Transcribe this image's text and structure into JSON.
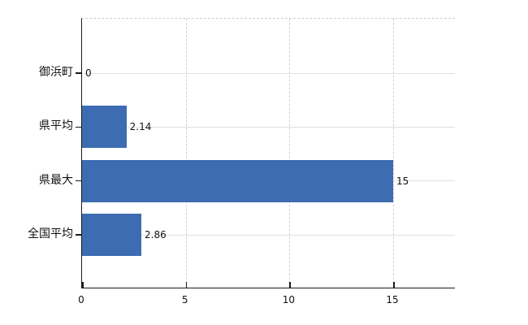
{
  "chart_data": {
    "type": "bar",
    "orientation": "horizontal",
    "title": "",
    "xlabel": "",
    "ylabel": "",
    "categories": [
      "御浜町",
      "県平均",
      "県最大",
      "全国平均"
    ],
    "values": [
      0,
      2.14,
      15,
      2.86
    ],
    "value_labels": [
      "0",
      "2.14",
      "15",
      "2.86"
    ],
    "x_ticks": [
      0,
      5,
      10,
      15
    ],
    "x_tick_labels": [
      "0",
      "5",
      "10",
      "15"
    ],
    "xlim": [
      0,
      18
    ],
    "grid": true,
    "legend": false,
    "bar_color": "#3d6cb2",
    "vertical_gridline_color": "#d2ced2",
    "horizontal_gridline_color": "#dde4dc",
    "axis_color": "#1b1b1b",
    "background_color": "#ffffff"
  }
}
